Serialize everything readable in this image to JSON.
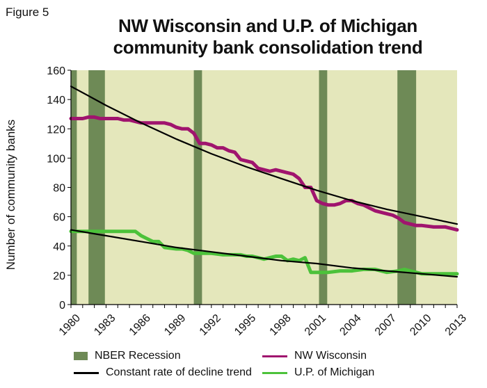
{
  "figure_label": "Figure 5",
  "title_line1": "NW Wisconsin and U.P. of Michigan",
  "title_line2": "community bank consolidation trend",
  "colors": {
    "plot_bg": "#e4e7bb",
    "recession": "#6e8a56",
    "nw_wisconsin": "#a0146e",
    "up_michigan": "#4cc23a",
    "trend": "#000000"
  },
  "legend": {
    "recession": "NBER Recession",
    "trend": "Constant rate of decline trend",
    "nw_wisconsin": "NW Wisconsin",
    "up_michigan": "U.P. of Michigan"
  },
  "chart_data": {
    "type": "line",
    "ylabel": "Number of community banks",
    "xlim": [
      1980,
      2013
    ],
    "ylim": [
      0,
      160
    ],
    "yticks": [
      0,
      20,
      40,
      60,
      80,
      100,
      120,
      140,
      160
    ],
    "xticks": [
      "1980",
      "1983",
      "1986",
      "1989",
      "1992",
      "1995",
      "1998",
      "2001",
      "2004",
      "2007",
      "2010",
      "2013"
    ],
    "grid": false,
    "legend_position": "bottom",
    "recessions": [
      {
        "start": 1980.0,
        "end": 1980.5
      },
      {
        "start": 1981.5,
        "end": 1982.9
      },
      {
        "start": 1990.5,
        "end": 1991.2
      },
      {
        "start": 2001.2,
        "end": 2001.9
      },
      {
        "start": 2007.9,
        "end": 2009.5
      }
    ],
    "series": [
      {
        "name": "NW Wisconsin",
        "x": [
          1980,
          1981,
          1981.5,
          1982,
          1982.5,
          1983,
          1984,
          1984.5,
          1985,
          1985.5,
          1986,
          1987,
          1987.5,
          1988,
          1988.5,
          1989,
          1989.5,
          1990,
          1990.5,
          1991,
          1991.5,
          1992,
          1992.5,
          1993,
          1993.5,
          1994,
          1994.5,
          1995,
          1995.5,
          1996,
          1996.5,
          1997,
          1997.5,
          1998,
          1998.5,
          1999,
          1999.5,
          2000,
          2000.5,
          2001,
          2001.5,
          2002,
          2002.5,
          2003,
          2003.5,
          2004,
          2004.5,
          2005,
          2005.5,
          2006,
          2006.5,
          2007,
          2007.5,
          2008,
          2008.5,
          2009,
          2009.5,
          2010,
          2011,
          2012,
          2012.5,
          2013
        ],
        "values": [
          127,
          127,
          128,
          128,
          127,
          127,
          127,
          126,
          126,
          125,
          124,
          124,
          124,
          124,
          123,
          121,
          120,
          120,
          117,
          110,
          110,
          109,
          107,
          107,
          105,
          104,
          99,
          98,
          97,
          93,
          92,
          91,
          92,
          91,
          90,
          89,
          86,
          80,
          80,
          71,
          69,
          68,
          68,
          69,
          71,
          71,
          69,
          68,
          66,
          64,
          63,
          62,
          61,
          59,
          56,
          55,
          54,
          54,
          53,
          53,
          52,
          51
        ]
      },
      {
        "name": "U.P. of Michigan",
        "x": [
          1980,
          1981,
          1982,
          1983,
          1984,
          1985,
          1985.5,
          1986,
          1986.5,
          1987,
          1987.5,
          1988,
          1989,
          1989.5,
          1990,
          1990.5,
          1991,
          1992,
          1993,
          1994,
          1994.5,
          1995,
          1995.5,
          1996,
          1996.5,
          1997,
          1997.5,
          1998,
          1998.5,
          1999,
          1999.5,
          2000,
          2000.5,
          2001,
          2002,
          2003,
          2004,
          2005,
          2006,
          2006.5,
          2007,
          2008,
          2008.5,
          2009,
          2009.5,
          2010,
          2011,
          2012,
          2013
        ],
        "values": [
          50,
          50,
          50,
          50,
          50,
          50,
          50,
          47,
          45,
          43,
          43,
          39,
          38,
          38,
          37,
          35,
          35,
          35,
          34,
          34,
          34,
          33,
          33,
          32,
          31,
          32,
          33,
          33,
          30,
          31,
          30,
          32,
          22,
          22,
          22,
          23,
          23,
          24,
          24,
          23,
          22,
          23,
          24,
          23,
          22,
          21,
          21,
          21,
          21
        ]
      },
      {
        "name": "Constant rate of decline trend",
        "group": "NW Wisconsin",
        "x": [
          1980,
          1983,
          1986,
          1989,
          1992,
          1995,
          1998,
          2001,
          2004,
          2007,
          2010,
          2013
        ],
        "values": [
          149,
          136,
          124,
          113,
          103,
          94,
          86,
          78,
          71,
          65,
          60,
          55
        ]
      },
      {
        "name": "Constant rate of decline trend",
        "group": "U.P. of Michigan",
        "x": [
          1980,
          1983,
          1986,
          1989,
          1992,
          1995,
          1998,
          2001,
          2004,
          2007,
          2010,
          2013
        ],
        "values": [
          51,
          47,
          43,
          39,
          36,
          33,
          30,
          28,
          25,
          23,
          21,
          19
        ]
      }
    ]
  }
}
